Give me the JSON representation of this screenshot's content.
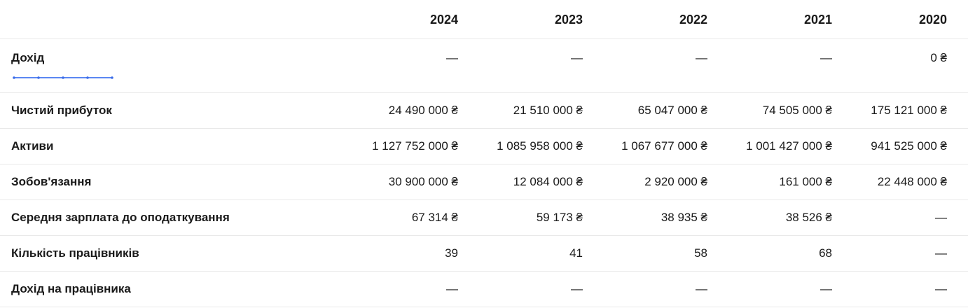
{
  "table": {
    "columns": [
      "2024",
      "2023",
      "2022",
      "2021",
      "2020"
    ],
    "rows": [
      {
        "label": "Дохід",
        "values": [
          "—",
          "—",
          "—",
          "—",
          "0 ₴"
        ],
        "sparkline": true
      },
      {
        "label": "Чистий прибуток",
        "values": [
          "24 490 000 ₴",
          "21 510 000 ₴",
          "65 047 000 ₴",
          "74 505 000 ₴",
          "175 121 000 ₴"
        ]
      },
      {
        "label": "Активи",
        "values": [
          "1 127 752 000 ₴",
          "1 085 958 000 ₴",
          "1 067 677 000 ₴",
          "1 001 427 000 ₴",
          "941 525 000 ₴"
        ]
      },
      {
        "label": "Зобов'язання",
        "values": [
          "30 900 000 ₴",
          "12 084 000 ₴",
          "2 920 000 ₴",
          "161 000 ₴",
          "22 448 000 ₴"
        ]
      },
      {
        "label": "Середня зарплата до оподаткування",
        "values": [
          "67 314 ₴",
          "59 173 ₴",
          "38 935 ₴",
          "38 526 ₴",
          "—"
        ]
      },
      {
        "label": "Кількість працівників",
        "values": [
          "39",
          "41",
          "58",
          "68",
          "—"
        ]
      },
      {
        "label": "Дохід на працівника",
        "values": [
          "—",
          "—",
          "—",
          "—",
          "—"
        ]
      }
    ]
  },
  "sparkline": {
    "points": [
      0,
      0,
      0,
      0,
      0
    ],
    "line_color": "#5b87f2",
    "marker_color": "#3d6ee8"
  },
  "colors": {
    "text": "#1a1a1a",
    "border": "#e9e9e9",
    "accent_blue": "#4f7df0"
  }
}
